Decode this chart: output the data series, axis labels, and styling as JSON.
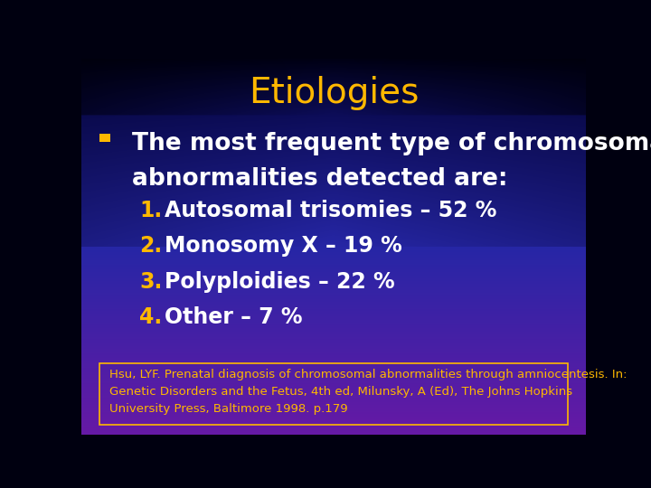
{
  "title": "Etiologies",
  "title_color": "#FFB800",
  "title_fontsize": 28,
  "title_bold": false,
  "bullet_color": "#FFB800",
  "bullet_text_color": "#FFFFFF",
  "bullet_text_line1": "The most frequent type of chromosomal",
  "bullet_text_line2": "abnormalities detected are:",
  "bullet_fontsize": 19,
  "numbered_items": [
    "Autosomal trisomies – 52 %",
    "Monosomy X – 19 %",
    "Polyploidies – 22 %",
    "Other – 7 %"
  ],
  "numbered_color": "#FFB800",
  "numbered_text_color": "#FFFFFF",
  "numbered_fontsize": 17,
  "footnote": "Hsu, LYF. Prenatal diagnosis of chromosomal abnormalities through amniocentesis. In:\nGenetic Disorders and the Fetus, 4th ed, Milunsky, A (Ed), The Johns Hopkins\nUniversity Press, Baltimore 1998. p.179",
  "footnote_fontsize": 9.5,
  "footnote_color": "#FFB800",
  "footnote_box_edge": "#FFB800"
}
